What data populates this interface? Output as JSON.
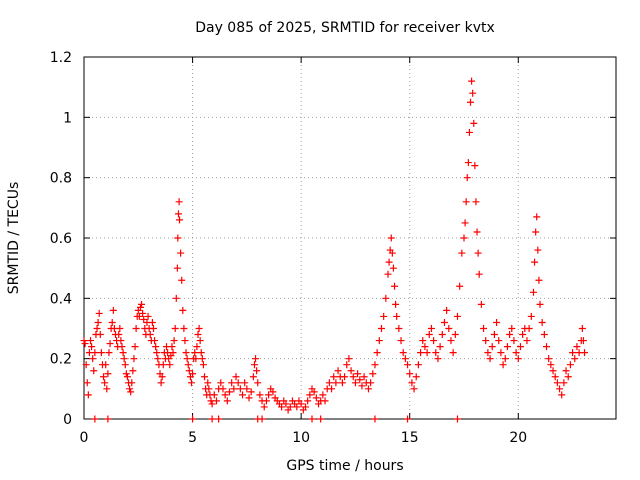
{
  "chart_data": {
    "type": "scatter",
    "title": "Day 085 of 2025, SRMTID for receiver kvtx",
    "xlabel": "GPS time / hours",
    "ylabel": "SRMTID / TECUs",
    "xlim": [
      0,
      24.5
    ],
    "ylim": [
      0,
      1.2
    ],
    "x_ticks": [
      0,
      5,
      10,
      15,
      20
    ],
    "x_tick_labels": [
      "0",
      "5",
      "10",
      "15",
      "20"
    ],
    "y_ticks": [
      0,
      0.2,
      0.4,
      0.6,
      0.8,
      1.0,
      1.2
    ],
    "y_tick_labels": [
      "0",
      "0.2",
      "0.4",
      "0.6",
      "0.8",
      "1",
      "1.2"
    ],
    "grid": true,
    "marker": "+",
    "series": [
      {
        "name": "SRMTID",
        "color": "#ff0000",
        "points": [
          [
            0.0,
            0.26
          ],
          [
            0.05,
            0.25
          ],
          [
            0.1,
            0.18
          ],
          [
            0.15,
            0.12
          ],
          [
            0.2,
            0.08
          ],
          [
            0.25,
            0.22
          ],
          [
            0.3,
            0.26
          ],
          [
            0.35,
            0.24
          ],
          [
            0.4,
            0.2
          ],
          [
            0.45,
            0.16
          ],
          [
            0.5,
            0.22
          ],
          [
            0.55,
            0.28
          ],
          [
            0.6,
            0.3
          ],
          [
            0.65,
            0.32
          ],
          [
            0.7,
            0.35
          ],
          [
            0.75,
            0.28
          ],
          [
            0.8,
            0.22
          ],
          [
            0.85,
            0.18
          ],
          [
            0.9,
            0.14
          ],
          [
            0.95,
            0.12
          ],
          [
            1.0,
            0.18
          ],
          [
            1.05,
            0.1
          ],
          [
            1.1,
            0.15
          ],
          [
            1.15,
            0.22
          ],
          [
            1.2,
            0.25
          ],
          [
            1.25,
            0.3
          ],
          [
            1.3,
            0.32
          ],
          [
            1.35,
            0.36
          ],
          [
            1.4,
            0.3
          ],
          [
            1.45,
            0.28
          ],
          [
            1.5,
            0.26
          ],
          [
            1.55,
            0.24
          ],
          [
            1.6,
            0.28
          ],
          [
            1.65,
            0.3
          ],
          [
            1.7,
            0.26
          ],
          [
            1.75,
            0.24
          ],
          [
            1.8,
            0.22
          ],
          [
            1.85,
            0.2
          ],
          [
            1.9,
            0.18
          ],
          [
            1.95,
            0.15
          ],
          [
            2.0,
            0.14
          ],
          [
            2.05,
            0.12
          ],
          [
            2.1,
            0.1
          ],
          [
            2.15,
            0.09
          ],
          [
            2.2,
            0.12
          ],
          [
            2.25,
            0.16
          ],
          [
            2.3,
            0.2
          ],
          [
            2.35,
            0.24
          ],
          [
            2.4,
            0.3
          ],
          [
            2.45,
            0.34
          ],
          [
            2.5,
            0.36
          ],
          [
            2.55,
            0.34
          ],
          [
            2.6,
            0.37
          ],
          [
            2.65,
            0.38
          ],
          [
            2.7,
            0.35
          ],
          [
            2.75,
            0.33
          ],
          [
            2.8,
            0.3
          ],
          [
            2.85,
            0.28
          ],
          [
            2.9,
            0.32
          ],
          [
            2.95,
            0.34
          ],
          [
            3.0,
            0.3
          ],
          [
            3.05,
            0.28
          ],
          [
            3.1,
            0.26
          ],
          [
            3.15,
            0.32
          ],
          [
            3.2,
            0.3
          ],
          [
            3.25,
            0.26
          ],
          [
            3.3,
            0.24
          ],
          [
            3.35,
            0.22
          ],
          [
            3.4,
            0.2
          ],
          [
            3.45,
            0.18
          ],
          [
            3.5,
            0.15
          ],
          [
            3.55,
            0.12
          ],
          [
            3.6,
            0.14
          ],
          [
            3.65,
            0.18
          ],
          [
            3.7,
            0.22
          ],
          [
            3.75,
            0.2
          ],
          [
            3.8,
            0.24
          ],
          [
            3.85,
            0.22
          ],
          [
            3.9,
            0.2
          ],
          [
            3.95,
            0.18
          ],
          [
            4.0,
            0.21
          ],
          [
            4.05,
            0.24
          ],
          [
            4.1,
            0.22
          ],
          [
            4.15,
            0.26
          ],
          [
            4.2,
            0.3
          ],
          [
            4.25,
            0.4
          ],
          [
            4.3,
            0.5
          ],
          [
            4.32,
            0.6
          ],
          [
            4.35,
            0.68
          ],
          [
            4.38,
            0.72
          ],
          [
            4.4,
            0.66
          ],
          [
            4.45,
            0.55
          ],
          [
            4.5,
            0.46
          ],
          [
            4.55,
            0.36
          ],
          [
            4.6,
            0.3
          ],
          [
            4.65,
            0.26
          ],
          [
            4.7,
            0.22
          ],
          [
            4.75,
            0.2
          ],
          [
            4.8,
            0.18
          ],
          [
            4.85,
            0.16
          ],
          [
            4.9,
            0.14
          ],
          [
            4.95,
            0.12
          ],
          [
            5.0,
            0.15
          ],
          [
            5.05,
            0.2
          ],
          [
            5.1,
            0.22
          ],
          [
            5.15,
            0.2
          ],
          [
            5.2,
            0.24
          ],
          [
            5.25,
            0.28
          ],
          [
            5.3,
            0.3
          ],
          [
            5.35,
            0.26
          ],
          [
            5.4,
            0.22
          ],
          [
            5.45,
            0.2
          ],
          [
            5.5,
            0.18
          ],
          [
            5.55,
            0.14
          ],
          [
            5.6,
            0.1
          ],
          [
            5.65,
            0.08
          ],
          [
            5.7,
            0.12
          ],
          [
            5.75,
            0.1
          ],
          [
            5.8,
            0.08
          ],
          [
            5.85,
            0.06
          ],
          [
            5.9,
            0.05
          ],
          [
            6.0,
            0.08
          ],
          [
            6.1,
            0.06
          ],
          [
            6.2,
            0.1
          ],
          [
            6.3,
            0.12
          ],
          [
            6.4,
            0.1
          ],
          [
            6.5,
            0.08
          ],
          [
            6.6,
            0.06
          ],
          [
            6.7,
            0.09
          ],
          [
            6.8,
            0.12
          ],
          [
            6.9,
            0.1
          ],
          [
            7.0,
            0.14
          ],
          [
            7.1,
            0.12
          ],
          [
            7.2,
            0.1
          ],
          [
            7.3,
            0.08
          ],
          [
            7.4,
            0.12
          ],
          [
            7.5,
            0.1
          ],
          [
            7.6,
            0.07
          ],
          [
            7.7,
            0.09
          ],
          [
            7.8,
            0.14
          ],
          [
            7.85,
            0.18
          ],
          [
            7.9,
            0.2
          ],
          [
            7.95,
            0.16
          ],
          [
            8.0,
            0.12
          ],
          [
            8.1,
            0.08
          ],
          [
            8.2,
            0.06
          ],
          [
            8.3,
            0.04
          ],
          [
            8.4,
            0.06
          ],
          [
            8.5,
            0.08
          ],
          [
            8.6,
            0.1
          ],
          [
            8.7,
            0.09
          ],
          [
            8.8,
            0.07
          ],
          [
            8.9,
            0.06
          ],
          [
            9.0,
            0.05
          ],
          [
            9.1,
            0.04
          ],
          [
            9.2,
            0.06
          ],
          [
            9.3,
            0.05
          ],
          [
            9.4,
            0.03
          ],
          [
            9.5,
            0.04
          ],
          [
            9.6,
            0.06
          ],
          [
            9.7,
            0.05
          ],
          [
            9.8,
            0.04
          ],
          [
            9.9,
            0.06
          ],
          [
            10.0,
            0.05
          ],
          [
            10.1,
            0.03
          ],
          [
            10.2,
            0.04
          ],
          [
            10.3,
            0.06
          ],
          [
            10.4,
            0.08
          ],
          [
            10.5,
            0.1
          ],
          [
            10.6,
            0.09
          ],
          [
            10.7,
            0.07
          ],
          [
            10.8,
            0.05
          ],
          [
            10.9,
            0.06
          ],
          [
            11.0,
            0.08
          ],
          [
            11.1,
            0.06
          ],
          [
            11.2,
            0.1
          ],
          [
            11.3,
            0.12
          ],
          [
            11.4,
            0.1
          ],
          [
            11.5,
            0.14
          ],
          [
            11.6,
            0.12
          ],
          [
            11.7,
            0.16
          ],
          [
            11.8,
            0.14
          ],
          [
            11.9,
            0.12
          ],
          [
            12.0,
            0.14
          ],
          [
            12.1,
            0.18
          ],
          [
            12.2,
            0.2
          ],
          [
            12.3,
            0.16
          ],
          [
            12.4,
            0.14
          ],
          [
            12.5,
            0.12
          ],
          [
            12.6,
            0.15
          ],
          [
            12.7,
            0.13
          ],
          [
            12.8,
            0.11
          ],
          [
            12.9,
            0.14
          ],
          [
            13.0,
            0.12
          ],
          [
            13.1,
            0.1
          ],
          [
            13.2,
            0.12
          ],
          [
            13.3,
            0.15
          ],
          [
            13.4,
            0.18
          ],
          [
            13.5,
            0.22
          ],
          [
            13.6,
            0.26
          ],
          [
            13.7,
            0.3
          ],
          [
            13.8,
            0.34
          ],
          [
            13.9,
            0.4
          ],
          [
            14.0,
            0.48
          ],
          [
            14.05,
            0.52
          ],
          [
            14.1,
            0.56
          ],
          [
            14.15,
            0.6
          ],
          [
            14.2,
            0.55
          ],
          [
            14.25,
            0.5
          ],
          [
            14.3,
            0.44
          ],
          [
            14.35,
            0.38
          ],
          [
            14.4,
            0.34
          ],
          [
            14.5,
            0.3
          ],
          [
            14.6,
            0.26
          ],
          [
            14.7,
            0.22
          ],
          [
            14.8,
            0.2
          ],
          [
            14.9,
            0.18
          ],
          [
            15.0,
            0.15
          ],
          [
            15.1,
            0.12
          ],
          [
            15.2,
            0.1
          ],
          [
            15.3,
            0.14
          ],
          [
            15.4,
            0.18
          ],
          [
            15.5,
            0.22
          ],
          [
            15.6,
            0.26
          ],
          [
            15.7,
            0.24
          ],
          [
            15.8,
            0.22
          ],
          [
            15.9,
            0.28
          ],
          [
            16.0,
            0.3
          ],
          [
            16.1,
            0.26
          ],
          [
            16.2,
            0.22
          ],
          [
            16.3,
            0.2
          ],
          [
            16.4,
            0.24
          ],
          [
            16.5,
            0.28
          ],
          [
            16.6,
            0.32
          ],
          [
            16.7,
            0.36
          ],
          [
            16.8,
            0.3
          ],
          [
            16.9,
            0.26
          ],
          [
            17.0,
            0.22
          ],
          [
            17.1,
            0.28
          ],
          [
            17.2,
            0.34
          ],
          [
            17.3,
            0.44
          ],
          [
            17.4,
            0.55
          ],
          [
            17.5,
            0.6
          ],
          [
            17.55,
            0.65
          ],
          [
            17.6,
            0.72
          ],
          [
            17.65,
            0.8
          ],
          [
            17.7,
            0.85
          ],
          [
            17.75,
            0.95
          ],
          [
            17.8,
            1.05
          ],
          [
            17.85,
            1.12
          ],
          [
            17.9,
            1.08
          ],
          [
            17.95,
            0.98
          ],
          [
            18.0,
            0.84
          ],
          [
            18.05,
            0.72
          ],
          [
            18.1,
            0.62
          ],
          [
            18.15,
            0.55
          ],
          [
            18.2,
            0.48
          ],
          [
            18.3,
            0.38
          ],
          [
            18.4,
            0.3
          ],
          [
            18.5,
            0.26
          ],
          [
            18.6,
            0.22
          ],
          [
            18.7,
            0.2
          ],
          [
            18.8,
            0.24
          ],
          [
            18.9,
            0.28
          ],
          [
            19.0,
            0.32
          ],
          [
            19.1,
            0.26
          ],
          [
            19.2,
            0.22
          ],
          [
            19.3,
            0.18
          ],
          [
            19.4,
            0.2
          ],
          [
            19.5,
            0.24
          ],
          [
            19.6,
            0.28
          ],
          [
            19.7,
            0.3
          ],
          [
            19.8,
            0.26
          ],
          [
            19.9,
            0.22
          ],
          [
            20.0,
            0.2
          ],
          [
            20.1,
            0.24
          ],
          [
            20.2,
            0.28
          ],
          [
            20.3,
            0.3
          ],
          [
            20.4,
            0.26
          ],
          [
            20.5,
            0.3
          ],
          [
            20.6,
            0.34
          ],
          [
            20.7,
            0.42
          ],
          [
            20.75,
            0.52
          ],
          [
            20.8,
            0.62
          ],
          [
            20.85,
            0.67
          ],
          [
            20.9,
            0.56
          ],
          [
            20.95,
            0.46
          ],
          [
            21.0,
            0.38
          ],
          [
            21.1,
            0.32
          ],
          [
            21.2,
            0.28
          ],
          [
            21.3,
            0.24
          ],
          [
            21.4,
            0.2
          ],
          [
            21.5,
            0.18
          ],
          [
            21.6,
            0.16
          ],
          [
            21.7,
            0.14
          ],
          [
            21.8,
            0.12
          ],
          [
            21.9,
            0.1
          ],
          [
            22.0,
            0.08
          ],
          [
            22.1,
            0.12
          ],
          [
            22.2,
            0.16
          ],
          [
            22.3,
            0.14
          ],
          [
            22.4,
            0.18
          ],
          [
            22.5,
            0.22
          ],
          [
            22.6,
            0.2
          ],
          [
            22.7,
            0.24
          ],
          [
            22.8,
            0.22
          ],
          [
            22.9,
            0.26
          ],
          [
            22.95,
            0.3
          ],
          [
            23.0,
            0.26
          ],
          [
            23.05,
            0.22
          ],
          [
            0.5,
            0.0
          ],
          [
            1.1,
            0.0
          ],
          [
            5.0,
            0.0
          ],
          [
            5.9,
            0.0
          ],
          [
            6.2,
            0.0
          ],
          [
            8.0,
            0.0
          ],
          [
            8.2,
            0.0
          ],
          [
            10.5,
            0.0
          ],
          [
            10.9,
            0.0
          ],
          [
            13.4,
            0.0
          ],
          [
            14.9,
            0.0
          ],
          [
            17.2,
            0.0
          ]
        ]
      }
    ]
  }
}
